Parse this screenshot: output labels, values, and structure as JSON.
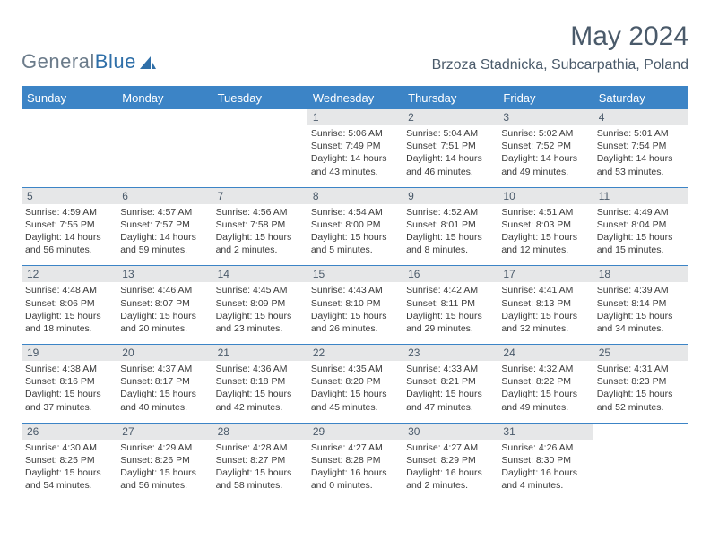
{
  "logo": {
    "gray": "General",
    "blue": "Blue"
  },
  "title": "May 2024",
  "location": "Brzoza Stadnicka, Subcarpathia, Poland",
  "weekdays": [
    "Sunday",
    "Monday",
    "Tuesday",
    "Wednesday",
    "Thursday",
    "Friday",
    "Saturday"
  ],
  "colors": {
    "accent": "#3c84c6",
    "header_text": "#4a5a6a",
    "daynum_bg": "#e6e7e8",
    "body_text": "#3a3a3a"
  },
  "weeks": [
    [
      null,
      null,
      null,
      {
        "n": "1",
        "sr": "5:06 AM",
        "ss": "7:49 PM",
        "dl": "14 hours and 43 minutes."
      },
      {
        "n": "2",
        "sr": "5:04 AM",
        "ss": "7:51 PM",
        "dl": "14 hours and 46 minutes."
      },
      {
        "n": "3",
        "sr": "5:02 AM",
        "ss": "7:52 PM",
        "dl": "14 hours and 49 minutes."
      },
      {
        "n": "4",
        "sr": "5:01 AM",
        "ss": "7:54 PM",
        "dl": "14 hours and 53 minutes."
      }
    ],
    [
      {
        "n": "5",
        "sr": "4:59 AM",
        "ss": "7:55 PM",
        "dl": "14 hours and 56 minutes."
      },
      {
        "n": "6",
        "sr": "4:57 AM",
        "ss": "7:57 PM",
        "dl": "14 hours and 59 minutes."
      },
      {
        "n": "7",
        "sr": "4:56 AM",
        "ss": "7:58 PM",
        "dl": "15 hours and 2 minutes."
      },
      {
        "n": "8",
        "sr": "4:54 AM",
        "ss": "8:00 PM",
        "dl": "15 hours and 5 minutes."
      },
      {
        "n": "9",
        "sr": "4:52 AM",
        "ss": "8:01 PM",
        "dl": "15 hours and 8 minutes."
      },
      {
        "n": "10",
        "sr": "4:51 AM",
        "ss": "8:03 PM",
        "dl": "15 hours and 12 minutes."
      },
      {
        "n": "11",
        "sr": "4:49 AM",
        "ss": "8:04 PM",
        "dl": "15 hours and 15 minutes."
      }
    ],
    [
      {
        "n": "12",
        "sr": "4:48 AM",
        "ss": "8:06 PM",
        "dl": "15 hours and 18 minutes."
      },
      {
        "n": "13",
        "sr": "4:46 AM",
        "ss": "8:07 PM",
        "dl": "15 hours and 20 minutes."
      },
      {
        "n": "14",
        "sr": "4:45 AM",
        "ss": "8:09 PM",
        "dl": "15 hours and 23 minutes."
      },
      {
        "n": "15",
        "sr": "4:43 AM",
        "ss": "8:10 PM",
        "dl": "15 hours and 26 minutes."
      },
      {
        "n": "16",
        "sr": "4:42 AM",
        "ss": "8:11 PM",
        "dl": "15 hours and 29 minutes."
      },
      {
        "n": "17",
        "sr": "4:41 AM",
        "ss": "8:13 PM",
        "dl": "15 hours and 32 minutes."
      },
      {
        "n": "18",
        "sr": "4:39 AM",
        "ss": "8:14 PM",
        "dl": "15 hours and 34 minutes."
      }
    ],
    [
      {
        "n": "19",
        "sr": "4:38 AM",
        "ss": "8:16 PM",
        "dl": "15 hours and 37 minutes."
      },
      {
        "n": "20",
        "sr": "4:37 AM",
        "ss": "8:17 PM",
        "dl": "15 hours and 40 minutes."
      },
      {
        "n": "21",
        "sr": "4:36 AM",
        "ss": "8:18 PM",
        "dl": "15 hours and 42 minutes."
      },
      {
        "n": "22",
        "sr": "4:35 AM",
        "ss": "8:20 PM",
        "dl": "15 hours and 45 minutes."
      },
      {
        "n": "23",
        "sr": "4:33 AM",
        "ss": "8:21 PM",
        "dl": "15 hours and 47 minutes."
      },
      {
        "n": "24",
        "sr": "4:32 AM",
        "ss": "8:22 PM",
        "dl": "15 hours and 49 minutes."
      },
      {
        "n": "25",
        "sr": "4:31 AM",
        "ss": "8:23 PM",
        "dl": "15 hours and 52 minutes."
      }
    ],
    [
      {
        "n": "26",
        "sr": "4:30 AM",
        "ss": "8:25 PM",
        "dl": "15 hours and 54 minutes."
      },
      {
        "n": "27",
        "sr": "4:29 AM",
        "ss": "8:26 PM",
        "dl": "15 hours and 56 minutes."
      },
      {
        "n": "28",
        "sr": "4:28 AM",
        "ss": "8:27 PM",
        "dl": "15 hours and 58 minutes."
      },
      {
        "n": "29",
        "sr": "4:27 AM",
        "ss": "8:28 PM",
        "dl": "16 hours and 0 minutes."
      },
      {
        "n": "30",
        "sr": "4:27 AM",
        "ss": "8:29 PM",
        "dl": "16 hours and 2 minutes."
      },
      {
        "n": "31",
        "sr": "4:26 AM",
        "ss": "8:30 PM",
        "dl": "16 hours and 4 minutes."
      },
      null
    ]
  ],
  "labels": {
    "sunrise": "Sunrise: ",
    "sunset": "Sunset: ",
    "daylight": "Daylight: "
  }
}
